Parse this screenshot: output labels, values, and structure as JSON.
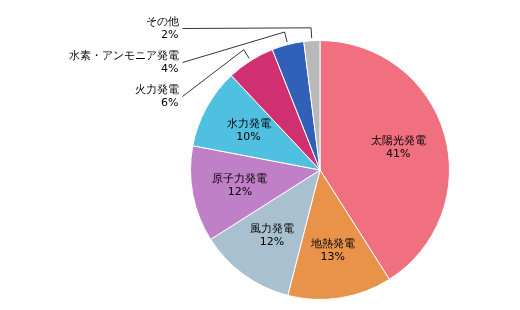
{
  "chart_data": {
    "type": "pie",
    "categories": [
      "太陽光発電",
      "地熱発電",
      "風力発電",
      "原子力発電",
      "水力発電",
      "火力発電",
      "水素・アンモニア発電",
      "その他"
    ],
    "values": [
      41,
      13,
      12,
      12,
      10,
      6,
      4,
      2
    ],
    "value_labels": [
      "41%",
      "13%",
      "12%",
      "12%",
      "10%",
      "6%",
      "4%",
      "2%"
    ],
    "colors": [
      "#F07080",
      "#E8924A",
      "#A8C0D0",
      "#C080C8",
      "#50C0E0",
      "#D03070",
      "#3060B8",
      "#B8B8B8"
    ],
    "data_labels": true
  }
}
